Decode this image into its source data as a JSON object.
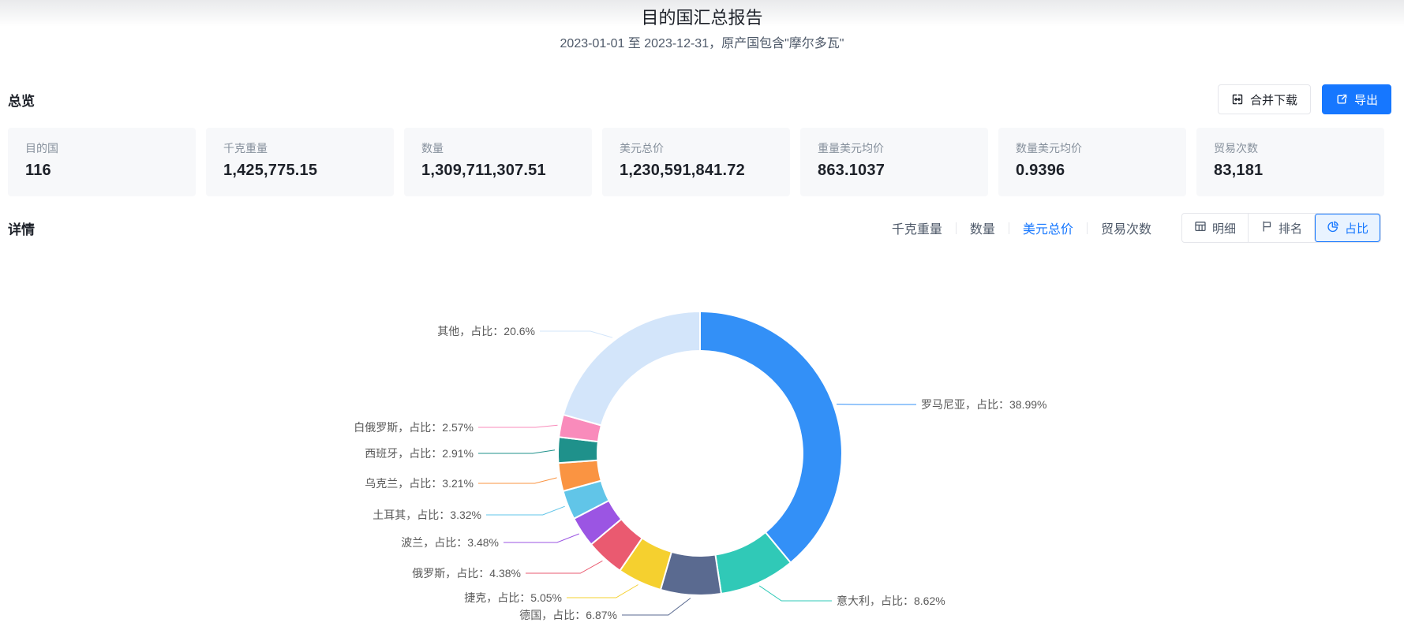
{
  "header": {
    "title": "目的国汇总报告",
    "subtitle": "2023-01-01 至 2023-12-31，原产国包含\"摩尔多瓦\""
  },
  "toolbar": {
    "merge_download_label": "合并下载",
    "export_label": "导出"
  },
  "overview": {
    "heading": "总览",
    "cards": [
      {
        "label": "目的国",
        "value": "116"
      },
      {
        "label": "千克重量",
        "value": "1,425,775.15"
      },
      {
        "label": "数量",
        "value": "1,309,711,307.51"
      },
      {
        "label": "美元总价",
        "value": "1,230,591,841.72"
      },
      {
        "label": "重量美元均价",
        "value": "863.1037"
      },
      {
        "label": "数量美元均价",
        "value": "0.9396"
      },
      {
        "label": "贸易次数",
        "value": "83,181"
      }
    ]
  },
  "details": {
    "heading": "详情",
    "metric_tabs": [
      {
        "label": "千克重量",
        "active": false
      },
      {
        "label": "数量",
        "active": false
      },
      {
        "label": "美元总价",
        "active": true
      },
      {
        "label": "贸易次数",
        "active": false
      }
    ],
    "view_buttons": [
      {
        "label": "明细",
        "icon": "table-icon",
        "active": false
      },
      {
        "label": "排名",
        "icon": "ranking-icon",
        "active": false
      },
      {
        "label": "占比",
        "icon": "pie-icon",
        "active": true
      }
    ]
  },
  "colors": {
    "accent": "#1677ff",
    "active_view_bg": "#e9f3ff",
    "card_bg": "#f7f8fa",
    "border": "#e5e6eb"
  },
  "chart_data": {
    "type": "pie",
    "shape": "donut",
    "start_angle": "top",
    "direction": "clockwise",
    "label_format": "{name}，占比：{percent}%",
    "series": [
      {
        "name": "罗马尼亚",
        "percent": 38.99,
        "label": "罗马尼亚，占比：38.99%",
        "color": "#3390f7"
      },
      {
        "name": "意大利",
        "percent": 8.62,
        "label": "意大利，占比：8.62%",
        "color": "#30c9b7"
      },
      {
        "name": "德国",
        "percent": 6.87,
        "label": "德国，占比：6.87%",
        "color": "#5a6a90"
      },
      {
        "name": "捷克",
        "percent": 5.05,
        "label": "捷克，占比：5.05%",
        "color": "#f5d02f"
      },
      {
        "name": "俄罗斯",
        "percent": 4.38,
        "label": "俄罗斯，占比：4.38%",
        "color": "#ea5a70"
      },
      {
        "name": "波兰",
        "percent": 3.48,
        "label": "波兰，占比：3.48%",
        "color": "#9b55e3"
      },
      {
        "name": "土耳其",
        "percent": 3.32,
        "label": "土耳其，占比：3.32%",
        "color": "#61c5e8"
      },
      {
        "name": "乌克兰",
        "percent": 3.21,
        "label": "乌克兰，占比：3.21%",
        "color": "#fa9442"
      },
      {
        "name": "西班牙",
        "percent": 2.91,
        "label": "西班牙，占比：2.91%",
        "color": "#1f918b"
      },
      {
        "name": "白俄罗斯",
        "percent": 2.57,
        "label": "白俄罗斯，占比：2.57%",
        "color": "#f98bbb"
      },
      {
        "name": "其他",
        "percent": 20.6,
        "label": "其他，占比：20.6%",
        "color": "#d3e5fa"
      }
    ]
  }
}
